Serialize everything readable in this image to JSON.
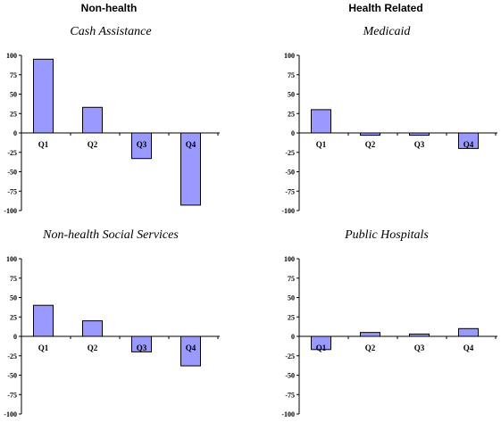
{
  "headers": {
    "left": "Non-health",
    "right": "Health Related"
  },
  "colors": {
    "bar": "#9999ff",
    "axis": "#000000"
  },
  "chart_data": [
    {
      "type": "bar",
      "title": "Cash Assistance",
      "categories": [
        "Q1",
        "Q2",
        "Q3",
        "Q4"
      ],
      "values": [
        95,
        33,
        -33,
        -93
      ],
      "ylim": [
        -100,
        100
      ],
      "yticks": [
        100,
        75,
        50,
        25,
        0,
        -25,
        -50,
        -75,
        -100
      ],
      "grid": false
    },
    {
      "type": "bar",
      "title": "Medicaid",
      "categories": [
        "Q1",
        "Q2",
        "Q3",
        "Q4"
      ],
      "values": [
        30,
        -3,
        -3,
        -20
      ],
      "ylim": [
        -100,
        100
      ],
      "yticks": [
        100,
        75,
        50,
        25,
        0,
        -25,
        -50,
        -75,
        -100
      ],
      "grid": false
    },
    {
      "type": "bar",
      "title": "Non-health Social Services",
      "categories": [
        "Q1",
        "Q2",
        "Q3",
        "Q4"
      ],
      "values": [
        40,
        20,
        -20,
        -38
      ],
      "ylim": [
        -100,
        100
      ],
      "yticks": [
        100,
        75,
        50,
        25,
        0,
        -25,
        -50,
        -75,
        -100
      ],
      "grid": false
    },
    {
      "type": "bar",
      "title": "Public Hospitals",
      "categories": [
        "Q1",
        "Q2",
        "Q3",
        "Q4"
      ],
      "values": [
        -17,
        5,
        3,
        10
      ],
      "ylim": [
        -100,
        100
      ],
      "yticks": [
        100,
        75,
        50,
        25,
        0,
        -25,
        -50,
        -75,
        -100
      ],
      "grid": false
    }
  ]
}
